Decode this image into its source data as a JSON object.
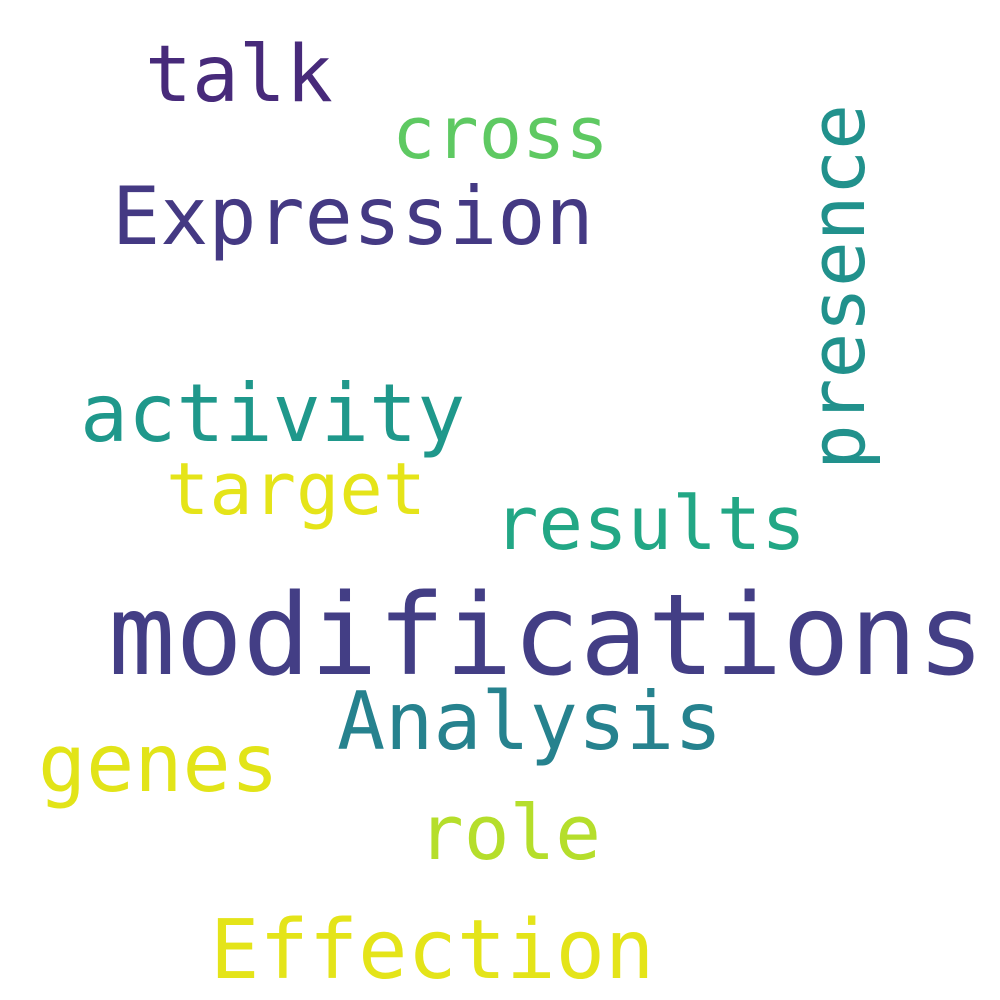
{
  "words": [
    {
      "text": "talk",
      "color": "#472a7a"
    },
    {
      "text": "cross",
      "color": "#5ec962"
    },
    {
      "text": "Expression",
      "color": "#443983"
    },
    {
      "text": "presence",
      "color": "#21918c"
    },
    {
      "text": "activity",
      "color": "#1f988b"
    },
    {
      "text": "target",
      "color": "#e5e419"
    },
    {
      "text": "results",
      "color": "#22a785"
    },
    {
      "text": "modifications",
      "color": "#433e85"
    },
    {
      "text": "Analysis",
      "color": "#26828e"
    },
    {
      "text": "genes",
      "color": "#e2e418"
    },
    {
      "text": "role",
      "color": "#b5de2b"
    },
    {
      "text": "Effection",
      "color": "#e4e419"
    }
  ]
}
